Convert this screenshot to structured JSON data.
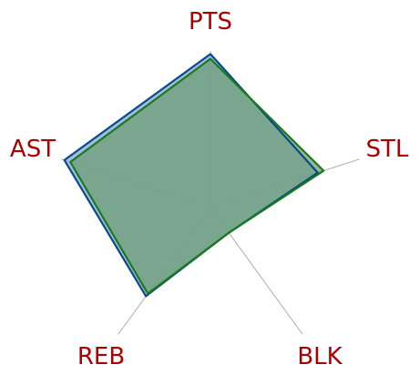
{
  "chart_data": {
    "type": "radar",
    "axes": [
      "PTS",
      "STL",
      "BLK",
      "REB",
      "AST"
    ],
    "rmax": 100,
    "grid": false,
    "legend": "none",
    "series": [
      {
        "values": [
          98,
          72,
          20,
          70,
          98
        ],
        "stroke": "#0a4a8a",
        "fill": "#8fb3de"
      },
      {
        "values": [
          95,
          76,
          20,
          68,
          94
        ],
        "stroke": "#1a7a1a",
        "fill": "#6a9a6a"
      }
    ]
  }
}
